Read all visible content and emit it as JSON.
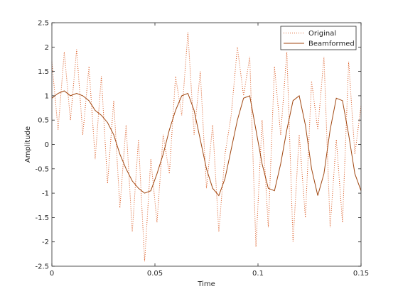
{
  "chart_data": {
    "type": "line",
    "title": "",
    "xlabel": "Time",
    "ylabel": "Amplitude",
    "xlim": [
      0,
      0.15
    ],
    "ylim": [
      -2.5,
      2.5
    ],
    "xticks": [
      0,
      0.05,
      0.1,
      0.15
    ],
    "xtick_labels": [
      "0",
      "0.05",
      "0.1",
      "0.15"
    ],
    "yticks": [
      -2.5,
      -2,
      -1.5,
      -1,
      -0.5,
      0,
      0.5,
      1,
      1.5,
      2,
      2.5
    ],
    "ytick_labels": [
      "-2.5",
      "-2",
      "-1.5",
      "-1",
      "-0.5",
      "0",
      "0.5",
      "1",
      "1.5",
      "2",
      "2.5"
    ],
    "grid": false,
    "legend_position": "top-right",
    "series": [
      {
        "name": "Original",
        "color": "#d95319",
        "style": "dotted",
        "x": [
          0,
          0.003,
          0.006,
          0.009,
          0.012,
          0.015,
          0.018,
          0.021,
          0.024,
          0.027,
          0.03,
          0.033,
          0.036,
          0.039,
          0.042,
          0.045,
          0.048,
          0.051,
          0.054,
          0.057,
          0.06,
          0.063,
          0.066,
          0.069,
          0.072,
          0.075,
          0.078,
          0.081,
          0.084,
          0.087,
          0.09,
          0.093,
          0.096,
          0.099,
          0.102,
          0.105,
          0.108,
          0.111,
          0.114,
          0.117,
          0.12,
          0.123,
          0.126,
          0.129,
          0.132,
          0.135,
          0.138,
          0.141,
          0.144,
          0.147,
          0.15
        ],
        "y": [
          1.7,
          0.3,
          1.9,
          0.5,
          1.95,
          0.2,
          1.6,
          -0.3,
          1.4,
          -0.8,
          0.9,
          -1.3,
          0.4,
          -1.8,
          0.1,
          -2.4,
          -0.3,
          -1.6,
          0.2,
          -0.6,
          1.4,
          0.6,
          2.3,
          0.2,
          1.5,
          -0.9,
          0.4,
          -1.8,
          -0.2,
          0.6,
          2.0,
          1.0,
          1.8,
          -2.1,
          0.5,
          -1.7,
          1.6,
          0.2,
          1.9,
          -2.0,
          0.2,
          -1.5,
          1.3,
          0.3,
          1.8,
          -1.7,
          0.1,
          -1.6,
          1.7,
          -0.2,
          0.8
        ]
      },
      {
        "name": "Beamformed",
        "color": "#a0460f",
        "style": "solid",
        "x": [
          0,
          0.003,
          0.006,
          0.009,
          0.012,
          0.015,
          0.018,
          0.021,
          0.024,
          0.027,
          0.03,
          0.033,
          0.036,
          0.039,
          0.042,
          0.045,
          0.048,
          0.051,
          0.054,
          0.057,
          0.06,
          0.063,
          0.066,
          0.069,
          0.072,
          0.075,
          0.078,
          0.081,
          0.084,
          0.087,
          0.09,
          0.093,
          0.096,
          0.099,
          0.102,
          0.105,
          0.108,
          0.111,
          0.114,
          0.117,
          0.12,
          0.123,
          0.126,
          0.129,
          0.132,
          0.135,
          0.138,
          0.141,
          0.144,
          0.147,
          0.15
        ],
        "y": [
          0.95,
          1.05,
          1.1,
          1.0,
          1.05,
          1.0,
          0.9,
          0.7,
          0.6,
          0.45,
          0.2,
          -0.2,
          -0.5,
          -0.75,
          -0.9,
          -1.0,
          -0.95,
          -0.6,
          -0.2,
          0.3,
          0.7,
          1.0,
          1.05,
          0.7,
          0.1,
          -0.5,
          -0.9,
          -1.05,
          -0.7,
          -0.1,
          0.5,
          0.95,
          1.0,
          0.3,
          -0.4,
          -0.9,
          -0.95,
          -0.4,
          0.3,
          0.9,
          1.0,
          0.4,
          -0.5,
          -1.05,
          -0.6,
          0.3,
          0.95,
          0.9,
          0.2,
          -0.6,
          -0.95
        ]
      }
    ]
  }
}
